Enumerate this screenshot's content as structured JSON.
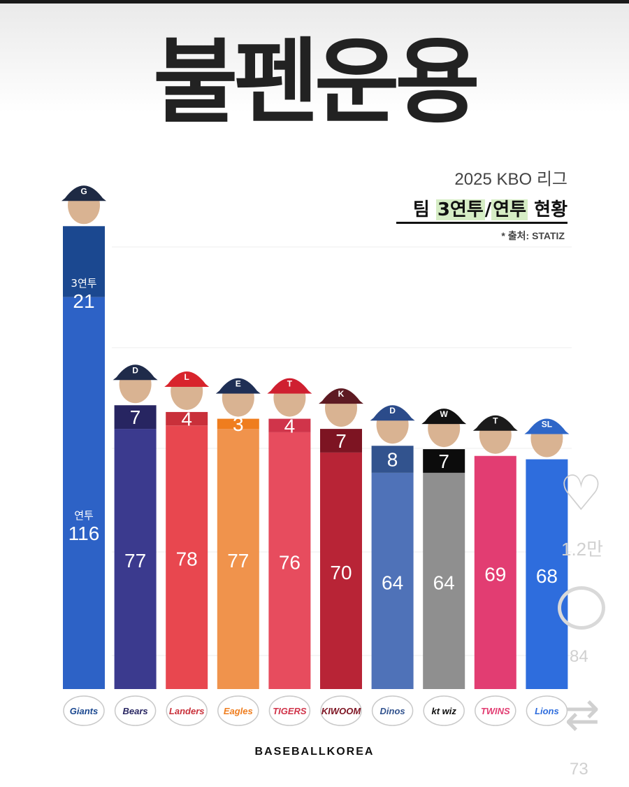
{
  "page": {
    "main_title": "불펜운용",
    "subtitle_season": "2025 KBO 리그",
    "subtitle_pre": "팀 ",
    "subtitle_highlight_1": "3연투",
    "subtitle_slash": "/",
    "subtitle_highlight_2": "연투",
    "subtitle_post": " 현황",
    "source": "* 출처: STATIZ",
    "brand": "BASEBALLKOREA"
  },
  "overlay": {
    "like_icon": "heart-icon",
    "like_count": "1.2만",
    "comment_icon": "comment-icon",
    "comment_count": "84",
    "share_icon": "repost-icon",
    "share_count": "73"
  },
  "chart_data": {
    "type": "bar",
    "stacked": true,
    "categories": [
      "Giants",
      "Bears",
      "Landers",
      "Eagles",
      "TIGERS",
      "KIWOOM",
      "Dinos",
      "kt wiz",
      "TWINS",
      "Lions"
    ],
    "series": [
      {
        "name": "연투",
        "values": [
          116,
          77,
          78,
          77,
          76,
          70,
          64,
          64,
          69,
          68
        ]
      },
      {
        "name": "3연투",
        "values": [
          21,
          7,
          4,
          3,
          4,
          7,
          8,
          7,
          null,
          null
        ]
      }
    ],
    "series_labels_shown_on_first_bar": {
      "top": "3연투",
      "bottom": "연투"
    },
    "colors": {
      "bottom": [
        "#2d62c6",
        "#3b3a8e",
        "#e8474f",
        "#f0934c",
        "#e74c5e",
        "#b82436",
        "#4f72b8",
        "#8f8f8f",
        "#e23d72",
        "#2e6ddd"
      ],
      "top": [
        "#1b4890",
        "#272561",
        "#c9303a",
        "#ef7d1e",
        "#d0344a",
        "#7d1422",
        "#32538e",
        "#0c0c0c",
        null,
        null
      ]
    },
    "team_logo_texts": [
      "Giants",
      "Bears",
      "Landers",
      "Eagles",
      "TIGERS",
      "KIWOOM",
      "Dinos",
      "kt wiz",
      "TWINS",
      "Lions"
    ],
    "cap_colors": [
      "#1e2a44",
      "#1f2b4a",
      "#d8242c",
      "#1f2f55",
      "#cf2030",
      "#5e1a22",
      "#2b4b8a",
      "#111111",
      "#1b1b1b",
      "#2e66c8"
    ],
    "cap_letters": [
      "G",
      "D",
      "L",
      "E",
      "T",
      "K",
      "D",
      "W",
      "T",
      "SL"
    ],
    "grid": true
  }
}
